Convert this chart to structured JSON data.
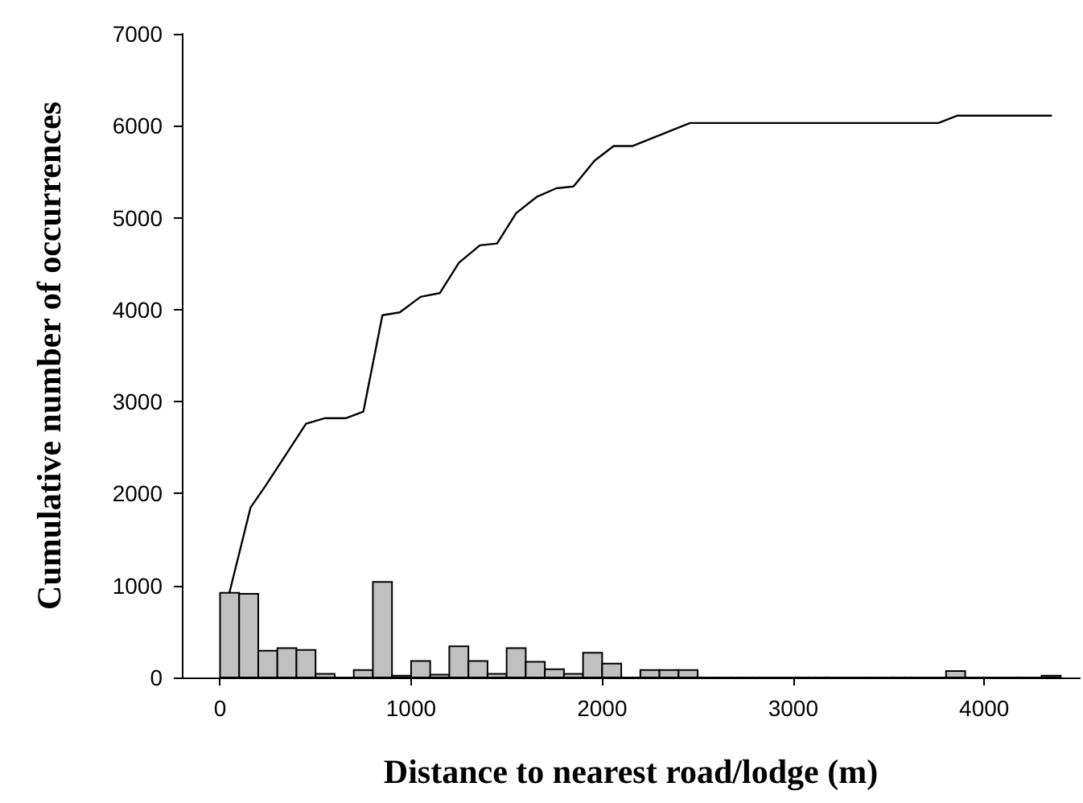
{
  "chart_data": {
    "type": "histogram",
    "xlabel": "Distance to nearest road/lodge (m)",
    "ylabel": "Cumulative number of occurrences",
    "bins": [
      0,
      100,
      200,
      300,
      400,
      500,
      600,
      700,
      800,
      900,
      1000,
      1100,
      1200,
      1300,
      1400,
      1500,
      1600,
      1700,
      1800,
      1900,
      2000,
      2100,
      2200,
      2300,
      2400,
      2500,
      2600,
      2700,
      2800,
      2900,
      3000,
      3100,
      3200,
      3300,
      3400,
      3500,
      3600,
      3700,
      3800,
      3900,
      4000,
      4100,
      4200,
      4300,
      4400
    ],
    "series": [
      {
        "color": "#c0c0c0",
        "values": [
          920,
          910,
          290,
          320,
          300,
          40,
          0,
          80,
          1040,
          20,
          180,
          30,
          340,
          180,
          40,
          320,
          170,
          90,
          40,
          270,
          150,
          0,
          80,
          80,
          80,
          0,
          0,
          0,
          0,
          0,
          0,
          0,
          0,
          0,
          0,
          0,
          0,
          0,
          70,
          0,
          0,
          0,
          0,
          20
        ]
      },
      {
        "type": "line",
        "color": "#000000",
        "x": [
          50,
          160,
          240,
          450,
          550,
          660,
          750,
          850,
          940,
          1050,
          1150,
          1250,
          1360,
          1450,
          1550,
          1660,
          1760,
          1850,
          1960,
          2060,
          2140,
          2160,
          2460,
          2630,
          3760,
          3860,
          4350
        ],
        "values": [
          930,
          1850,
          2090,
          2760,
          2820,
          2820,
          2890,
          3940,
          3970,
          4140,
          4180,
          4510,
          4700,
          4720,
          5050,
          5230,
          5320,
          5340,
          5620,
          5780,
          5780,
          5780,
          6030,
          6030,
          6030,
          6110,
          6110
        ]
      }
    ],
    "xlim": [
      -200,
      4500
    ],
    "xticks": [
      0,
      1000,
      2000,
      3000,
      4000
    ],
    "ylim": [
      0,
      7000
    ],
    "yticks": [
      0,
      1000,
      2000,
      3000,
      4000,
      5000,
      6000,
      7000
    ],
    "grid": false,
    "marker": "none",
    "line_style": "solid"
  }
}
